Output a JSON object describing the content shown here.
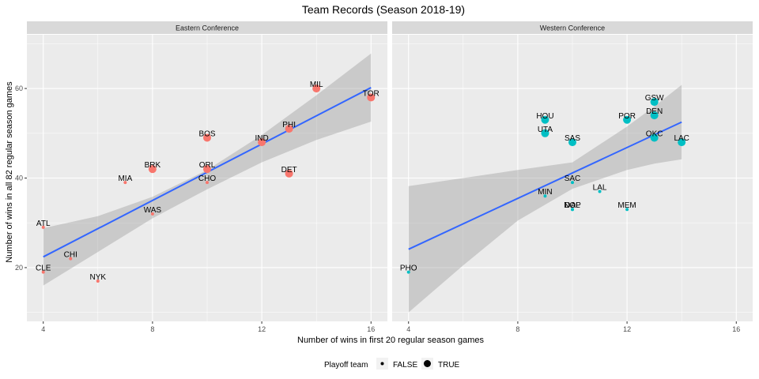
{
  "chart_data": {
    "type": "scatter",
    "title": "Team Records (Season 2018-19)",
    "xlabel": "Number of wins in first 20 regular season games",
    "ylabel": "Number of wins in all 82 regular season games",
    "xlim": [
      3.4,
      16.6
    ],
    "ylim": [
      8,
      72
    ],
    "x_ticks": [
      4,
      8,
      12,
      16
    ],
    "y_ticks": [
      20,
      40,
      60
    ],
    "grid": true,
    "colors": {
      "FALSE_east": "#F8766D",
      "TRUE_east": "#F8766D",
      "east": "#F8766D",
      "west": "#00BFC4",
      "fit": "#3366FF",
      "band": "#c6c6c6",
      "panel": "#ebebeb",
      "strip": "#d9d9d9"
    },
    "legend": {
      "title": "Playoff team",
      "position": "bottom",
      "entries": [
        "FALSE",
        "TRUE"
      ]
    },
    "panels": [
      {
        "strip": "Eastern Conference",
        "points": [
          {
            "team": "ATL",
            "x": 4,
            "y": 29,
            "playoff": false
          },
          {
            "team": "CLE",
            "x": 4,
            "y": 19,
            "playoff": false
          },
          {
            "team": "CHI",
            "x": 5,
            "y": 22,
            "playoff": false
          },
          {
            "team": "NYK",
            "x": 6,
            "y": 17,
            "playoff": false
          },
          {
            "team": "MIA",
            "x": 7,
            "y": 39,
            "playoff": false
          },
          {
            "team": "BRK",
            "x": 8,
            "y": 42,
            "playoff": true
          },
          {
            "team": "WAS",
            "x": 8,
            "y": 32,
            "playoff": false
          },
          {
            "team": "BOS",
            "x": 10,
            "y": 49,
            "playoff": true
          },
          {
            "team": "ORL",
            "x": 10,
            "y": 42,
            "playoff": true
          },
          {
            "team": "CHO",
            "x": 10,
            "y": 39,
            "playoff": false
          },
          {
            "team": "IND",
            "x": 12,
            "y": 48,
            "playoff": true
          },
          {
            "team": "PHI",
            "x": 13,
            "y": 51,
            "playoff": true
          },
          {
            "team": "DET",
            "x": 13,
            "y": 41,
            "playoff": true
          },
          {
            "team": "MIL",
            "x": 14,
            "y": 60,
            "playoff": true
          },
          {
            "team": "TOR",
            "x": 16,
            "y": 58,
            "playoff": true
          }
        ],
        "fit": {
          "x": [
            4,
            16
          ],
          "y": [
            22.4,
            60.2
          ]
        },
        "band": {
          "x": [
            4,
            6,
            8,
            10,
            12,
            14,
            16
          ],
          "lower": [
            16.0,
            23.5,
            31.0,
            37.5,
            43.5,
            48.5,
            52.6
          ],
          "upper": [
            28.8,
            31.5,
            35.8,
            41.8,
            49.6,
            58.5,
            67.8
          ]
        }
      },
      {
        "strip": "Western Conference",
        "points": [
          {
            "team": "PHO",
            "x": 4,
            "y": 19,
            "playoff": false
          },
          {
            "team": "MIN",
            "x": 9,
            "y": 36,
            "playoff": false
          },
          {
            "team": "HOU",
            "x": 9,
            "y": 53,
            "playoff": true
          },
          {
            "team": "UTA",
            "x": 9,
            "y": 50,
            "playoff": true
          },
          {
            "team": "SAS",
            "x": 10,
            "y": 48,
            "playoff": true
          },
          {
            "team": "SAC",
            "x": 10,
            "y": 39,
            "playoff": false
          },
          {
            "team": "DAL",
            "x": 10,
            "y": 33,
            "playoff": false
          },
          {
            "team": "NOP",
            "x": 10,
            "y": 33,
            "playoff": false
          },
          {
            "team": "LAL",
            "x": 11,
            "y": 37,
            "playoff": false
          },
          {
            "team": "POR",
            "x": 12,
            "y": 53,
            "playoff": true
          },
          {
            "team": "MEM",
            "x": 12,
            "y": 33,
            "playoff": false
          },
          {
            "team": "GSW",
            "x": 13,
            "y": 57,
            "playoff": true
          },
          {
            "team": "DEN",
            "x": 13,
            "y": 54,
            "playoff": true
          },
          {
            "team": "OKC",
            "x": 13,
            "y": 49,
            "playoff": true
          },
          {
            "team": "LAC",
            "x": 14,
            "y": 48,
            "playoff": true
          }
        ],
        "fit": {
          "x": [
            4,
            14
          ],
          "y": [
            24.1,
            52.5
          ]
        },
        "band": {
          "x": [
            4,
            6,
            8,
            10,
            12,
            13,
            14
          ],
          "lower": [
            10.0,
            20.5,
            30.5,
            37.6,
            41.8,
            43.2,
            44.2
          ],
          "upper": [
            38.2,
            40.0,
            41.8,
            43.5,
            51.5,
            56.0,
            60.8
          ]
        }
      }
    ]
  }
}
